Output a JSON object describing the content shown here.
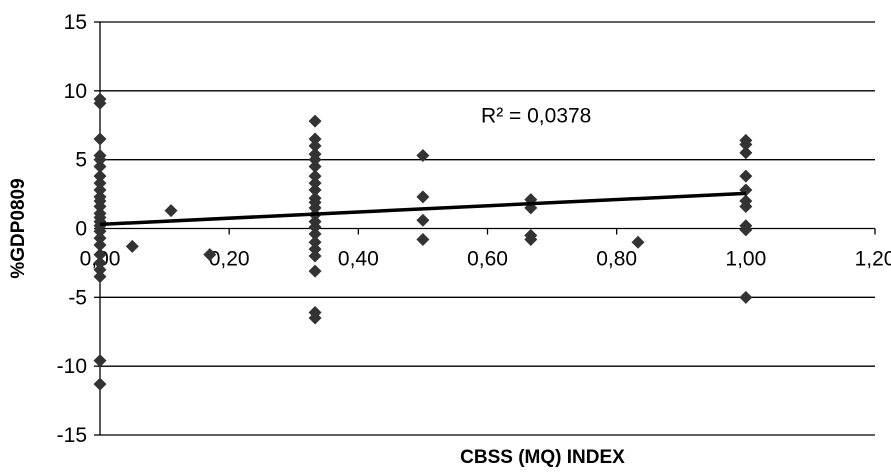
{
  "chart_data": {
    "type": "scatter",
    "title": "",
    "xlabel": "CBSS (MQ) INDEX",
    "ylabel": "%GDP0809",
    "xlim": [
      0,
      1.2
    ],
    "ylim": [
      -15,
      15
    ],
    "x_ticks": [
      {
        "value": 0.0,
        "label": "0,00"
      },
      {
        "value": 0.2,
        "label": "0,20"
      },
      {
        "value": 0.4,
        "label": "0,40"
      },
      {
        "value": 0.6,
        "label": "0,60"
      },
      {
        "value": 0.8,
        "label": "0,80"
      },
      {
        "value": 1.0,
        "label": "1,00"
      },
      {
        "value": 1.2,
        "label": "1,20"
      }
    ],
    "y_ticks": [
      {
        "value": 15,
        "label": "15"
      },
      {
        "value": 10,
        "label": "10"
      },
      {
        "value": 5,
        "label": "5"
      },
      {
        "value": 0,
        "label": "0"
      },
      {
        "value": -5,
        "label": "-5"
      },
      {
        "value": -10,
        "label": "-10"
      },
      {
        "value": -15,
        "label": "-15"
      }
    ],
    "grid": "horizontal",
    "legend": "none",
    "annotation": {
      "text": "R² = 0,0378",
      "x": 0.59,
      "y": 8.2
    },
    "trendline": {
      "type": "linear",
      "x": [
        0,
        1
      ],
      "y": [
        0.3,
        2.55
      ]
    },
    "marker_color": "#333333",
    "line_color": "#000000",
    "points": [
      {
        "x": 0,
        "y": 9.4
      },
      {
        "x": 0,
        "y": 9.1
      },
      {
        "x": 0,
        "y": 6.5
      },
      {
        "x": 0,
        "y": 5.3
      },
      {
        "x": 0,
        "y": 5.0
      },
      {
        "x": 0,
        "y": 4.5
      },
      {
        "x": 0,
        "y": 3.8
      },
      {
        "x": 0,
        "y": 3.3
      },
      {
        "x": 0,
        "y": 2.8
      },
      {
        "x": 0,
        "y": 2.3
      },
      {
        "x": 0,
        "y": 2.0
      },
      {
        "x": 0,
        "y": 1.6
      },
      {
        "x": 0,
        "y": 1.1
      },
      {
        "x": 0,
        "y": 0.8
      },
      {
        "x": 0,
        "y": 0.5
      },
      {
        "x": 0,
        "y": 0.2
      },
      {
        "x": 0,
        "y": -0.2
      },
      {
        "x": 0,
        "y": -0.7
      },
      {
        "x": 0,
        "y": -1.2
      },
      {
        "x": 0,
        "y": -1.9
      },
      {
        "x": 0,
        "y": -2.5
      },
      {
        "x": 0,
        "y": -3.0
      },
      {
        "x": 0,
        "y": -3.5
      },
      {
        "x": 0,
        "y": -9.6
      },
      {
        "x": 0,
        "y": -11.3
      },
      {
        "x": 0.05,
        "y": -1.3
      },
      {
        "x": 0.11,
        "y": 1.3
      },
      {
        "x": 0.17,
        "y": -1.9
      },
      {
        "x": 0.333,
        "y": 7.8
      },
      {
        "x": 0.333,
        "y": 6.5
      },
      {
        "x": 0.333,
        "y": 6.0
      },
      {
        "x": 0.333,
        "y": 5.4
      },
      {
        "x": 0.333,
        "y": 5.0
      },
      {
        "x": 0.333,
        "y": 4.5
      },
      {
        "x": 0.333,
        "y": 3.8
      },
      {
        "x": 0.333,
        "y": 3.3
      },
      {
        "x": 0.333,
        "y": 2.8
      },
      {
        "x": 0.333,
        "y": 2.2
      },
      {
        "x": 0.333,
        "y": 1.9
      },
      {
        "x": 0.333,
        "y": 1.5
      },
      {
        "x": 0.333,
        "y": 1.0
      },
      {
        "x": 0.333,
        "y": 0.5
      },
      {
        "x": 0.333,
        "y": 0.1
      },
      {
        "x": 0.333,
        "y": -0.4
      },
      {
        "x": 0.333,
        "y": -1.0
      },
      {
        "x": 0.333,
        "y": -1.5
      },
      {
        "x": 0.333,
        "y": -2.0
      },
      {
        "x": 0.333,
        "y": -3.1
      },
      {
        "x": 0.333,
        "y": -6.1
      },
      {
        "x": 0.333,
        "y": -6.5
      },
      {
        "x": 0.5,
        "y": 5.3
      },
      {
        "x": 0.5,
        "y": 2.3
      },
      {
        "x": 0.5,
        "y": 0.6
      },
      {
        "x": 0.5,
        "y": -0.8
      },
      {
        "x": 0.667,
        "y": 2.1
      },
      {
        "x": 0.667,
        "y": 1.5
      },
      {
        "x": 0.667,
        "y": -0.5
      },
      {
        "x": 0.667,
        "y": -0.8
      },
      {
        "x": 0.833,
        "y": -1.0
      },
      {
        "x": 1.0,
        "y": 6.4
      },
      {
        "x": 1.0,
        "y": 6.1
      },
      {
        "x": 1.0,
        "y": 5.5
      },
      {
        "x": 1.0,
        "y": 3.8
      },
      {
        "x": 1.0,
        "y": 2.8
      },
      {
        "x": 1.0,
        "y": 2.0
      },
      {
        "x": 1.0,
        "y": 1.6
      },
      {
        "x": 1.0,
        "y": 0.2
      },
      {
        "x": 1.0,
        "y": -0.1
      },
      {
        "x": 1.0,
        "y": -5.0
      }
    ]
  }
}
